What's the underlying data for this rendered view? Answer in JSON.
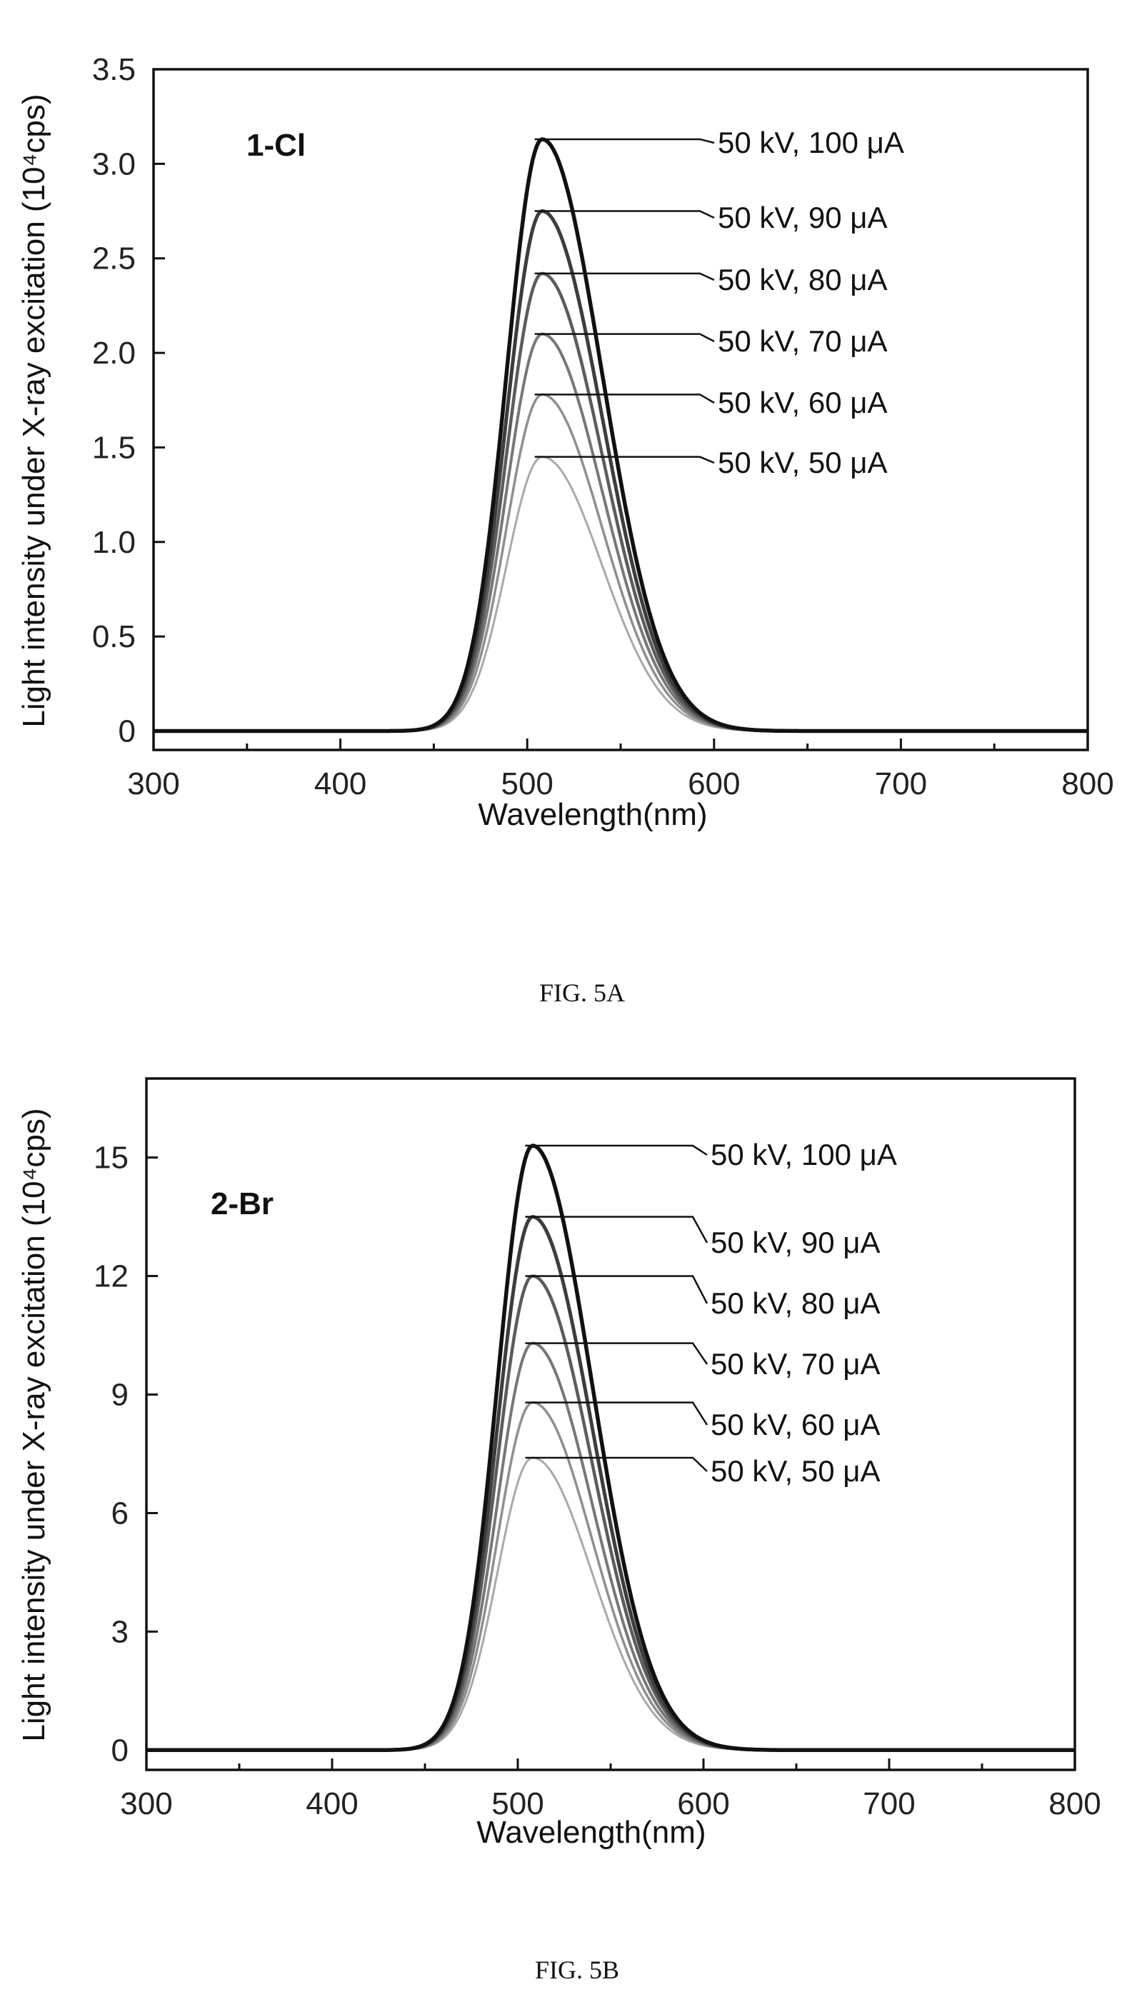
{
  "figures": [
    {
      "caption": "FIG. 5A",
      "panel_label": "1-Cl",
      "series_colors": [
        "#a9a9a9",
        "#8f8f8f",
        "#777777",
        "#5c5c5c",
        "#3d3d3d",
        "#111111"
      ],
      "y_tick_labels": [
        "0",
        "0.5",
        "1.0",
        "1.5",
        "2.0",
        "2.5",
        "3.0",
        "3.5"
      ],
      "x_tick_labels": [
        "300",
        "400",
        "500",
        "600",
        "700",
        "800"
      ]
    },
    {
      "caption": "FIG. 5B",
      "panel_label": "2-Br",
      "series_colors": [
        "#a9a9a9",
        "#8f8f8f",
        "#777777",
        "#5c5c5c",
        "#3d3d3d",
        "#111111"
      ],
      "y_tick_labels": [
        "0",
        "3",
        "6",
        "9",
        "12",
        "15"
      ],
      "x_tick_labels": [
        "300",
        "400",
        "500",
        "600",
        "700",
        "800"
      ]
    }
  ],
  "chart_data": [
    {
      "type": "line",
      "title": "",
      "xlabel": "Wavelength(nm)",
      "ylabel": "Light intensity under X-ray excitation (10⁴cps)",
      "xlim": [
        300,
        800
      ],
      "ylim": [
        -0.1,
        3.5
      ],
      "x_ticks": [
        300,
        400,
        500,
        600,
        700,
        800
      ],
      "y_ticks": [
        0,
        0.5,
        1.0,
        1.5,
        2.0,
        2.5,
        3.0,
        3.5
      ],
      "grid": false,
      "peak_wavelength": 508,
      "series": [
        {
          "name": "50 kV, 50 μA",
          "peak": 1.45
        },
        {
          "name": "50 kV, 60 μA",
          "peak": 1.78
        },
        {
          "name": "50 kV, 70 μA",
          "peak": 2.1
        },
        {
          "name": "50 kV, 80 μA",
          "peak": 2.42
        },
        {
          "name": "50 kV, 90 μA",
          "peak": 2.75
        },
        {
          "name": "50 kV, 100 μA",
          "peak": 3.13
        }
      ]
    },
    {
      "type": "line",
      "title": "",
      "xlabel": "Wavelength(nm)",
      "ylabel": "Light intensity under X-ray excitation (10⁴cps)",
      "xlim": [
        300,
        800
      ],
      "ylim": [
        -0.5,
        17
      ],
      "x_ticks": [
        300,
        400,
        500,
        600,
        700,
        800
      ],
      "y_ticks": [
        0,
        3,
        6,
        9,
        12,
        15
      ],
      "grid": false,
      "peak_wavelength": 508,
      "series": [
        {
          "name": "50 kV, 50 μA",
          "peak": 7.4
        },
        {
          "name": "50 kV, 60 μA",
          "peak": 8.8
        },
        {
          "name": "50 kV, 70 μA",
          "peak": 10.3
        },
        {
          "name": "50 kV, 80 μA",
          "peak": 12.0
        },
        {
          "name": "50 kV, 90 μA",
          "peak": 13.5
        },
        {
          "name": "50 kV, 100 μA",
          "peak": 15.3
        }
      ]
    }
  ]
}
